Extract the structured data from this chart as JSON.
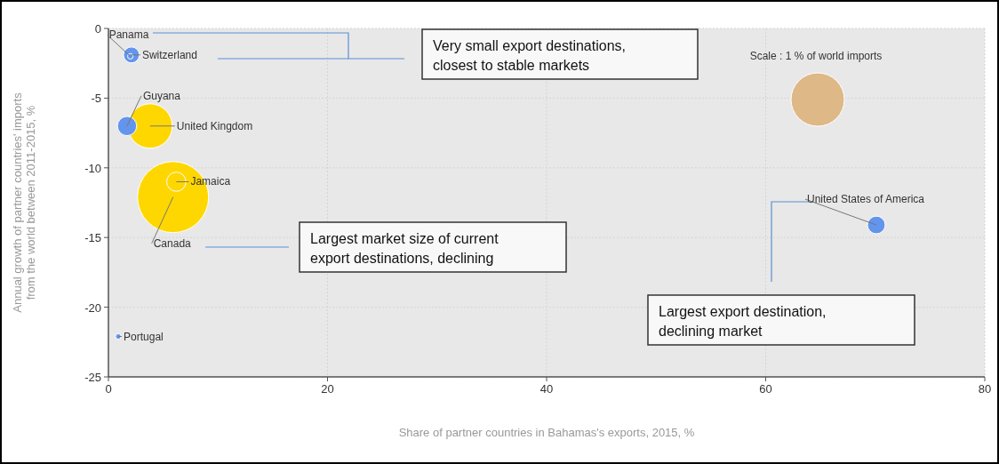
{
  "chart_data": {
    "type": "bubble",
    "xlabel": "Share of partner countries in Bahamas's exports, 2015, %",
    "ylabel": "Annual growth of partner countries' imports from the world between 2011-2015, %",
    "xlim": [
      0,
      80
    ],
    "xticks": [
      0,
      20,
      40,
      60,
      80
    ],
    "ylim": [
      -25,
      0
    ],
    "yticks": [
      -25,
      -20,
      -15,
      -10,
      -5,
      0
    ],
    "grid": true,
    "series": [
      {
        "name": "Panama",
        "color": "#6495ed",
        "x": [
          2
        ],
        "values": [
          -2
        ],
        "sizes": [
          0.006
        ]
      },
      {
        "name": "Switzerland",
        "color": "#6495ed",
        "x": [
          2.1
        ],
        "values": [
          -1.9
        ],
        "sizes": [
          0.05
        ]
      },
      {
        "name": "Guyana",
        "color": "#6495ed",
        "x": [
          1.7
        ],
        "values": [
          -7
        ],
        "sizes": [
          0.073
        ]
      },
      {
        "name": "United Kingdom",
        "color": "#ffd700",
        "x": [
          3.8
        ],
        "values": [
          -7
        ],
        "sizes": [
          0.39
        ]
      },
      {
        "name": "Canada",
        "color": "#ffd700",
        "x": [
          5.9
        ],
        "values": [
          -12.1
        ],
        "sizes": [
          1
        ]
      },
      {
        "name": "Jamaica",
        "color": "#ffd700",
        "x": [
          6.2
        ],
        "values": [
          -11
        ],
        "sizes": [
          0.073
        ]
      },
      {
        "name": "Portugal",
        "color": "#6495ed",
        "x": [
          0.9
        ],
        "values": [
          -22.1
        ],
        "sizes": [
          0.006
        ]
      },
      {
        "name": "United States of America",
        "color": "#6495ed",
        "x": [
          70.1
        ],
        "values": [
          -14.1
        ],
        "sizes": [
          0.062
        ]
      }
    ],
    "annotations": [
      "Very small export destinations, closest to stable markets",
      "Largest market size of current export destinations, declining",
      "Largest export destination, declining market",
      "Scale : 1 % of world imports"
    ]
  }
}
